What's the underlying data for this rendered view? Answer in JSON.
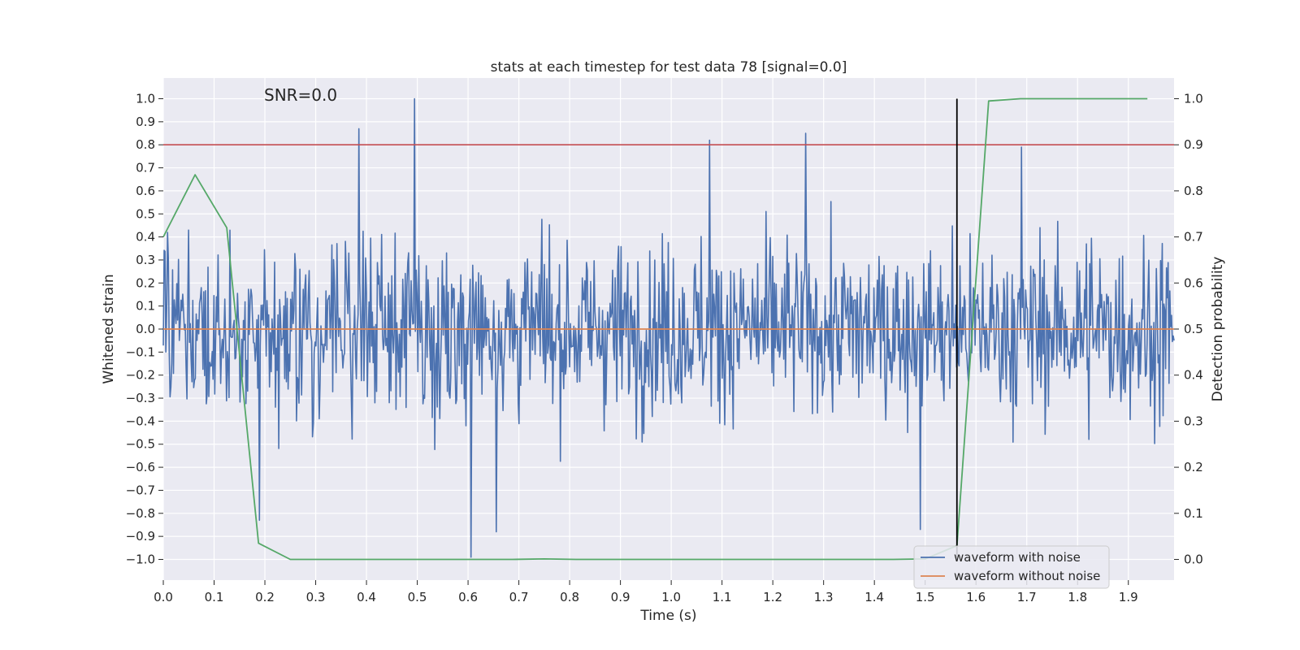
{
  "chart_data": {
    "type": "line",
    "title": "stats at each timestep for test data 78 [signal=0.0]",
    "xlabel": "Time (s)",
    "ylabel": "Whitened strain",
    "y2label": "Detection probability",
    "annotation": "SNR=0.0",
    "xlim": [
      0.0,
      1.99
    ],
    "ylim": [
      -1.09,
      1.09
    ],
    "y2lim": [
      -0.045,
      1.045
    ],
    "x_ticks": [
      "0.0",
      "0.1",
      "0.2",
      "0.3",
      "0.4",
      "0.5",
      "0.6",
      "0.7",
      "0.8",
      "0.9",
      "1.0",
      "1.1",
      "1.2",
      "1.3",
      "1.4",
      "1.5",
      "1.6",
      "1.7",
      "1.8",
      "1.9"
    ],
    "y_ticks": [
      "1.0",
      "0.9",
      "0.8",
      "0.7",
      "0.6",
      "0.5",
      "0.4",
      "0.3",
      "0.2",
      "0.1",
      "0.0",
      "−0.1",
      "−0.2",
      "−0.3",
      "−0.4",
      "−0.5",
      "−0.6",
      "−0.7",
      "−0.8",
      "−0.9",
      "−1.0"
    ],
    "y2_ticks": [
      "1.0",
      "0.9",
      "0.8",
      "0.7",
      "0.6",
      "0.5",
      "0.4",
      "0.3",
      "0.2",
      "0.1",
      "0.0"
    ],
    "grid": true,
    "legend_position": "lower-right",
    "series": [
      {
        "name": "waveform with noise",
        "color": "#4c72b0",
        "axis": "left",
        "x_start": 0.0,
        "x_end": 1.99,
        "n_samples": 1200,
        "peaks": [
          [
            0.495,
            1.0
          ],
          [
            0.385,
            0.87
          ],
          [
            1.265,
            0.85
          ],
          [
            1.075,
            0.82
          ],
          [
            1.69,
            0.79
          ],
          [
            0.605,
            -0.99
          ],
          [
            0.655,
            -0.88
          ],
          [
            1.49,
            -0.87
          ],
          [
            0.19,
            -0.83
          ]
        ]
      },
      {
        "name": "waveform without noise",
        "color": "#dd8452",
        "axis": "left",
        "x": [
          0.0,
          1.99
        ],
        "y": [
          0.0,
          0.0
        ]
      },
      {
        "name": "",
        "color": "#55a868",
        "axis": "right",
        "x": [
          0.0,
          0.0625,
          0.125,
          0.1875,
          0.25,
          0.3125,
          0.375,
          0.4375,
          0.5,
          0.5625,
          0.625,
          0.6875,
          0.75,
          0.8125,
          0.875,
          0.9375,
          1.0,
          1.0625,
          1.125,
          1.1875,
          1.25,
          1.3125,
          1.375,
          1.4375,
          1.5,
          1.5625,
          1.625,
          1.6875,
          1.75,
          1.8125,
          1.875,
          1.9375
        ],
        "y": [
          0.7,
          0.835,
          0.72,
          0.035,
          0.0,
          0.0,
          0.0,
          0.0,
          0.0,
          0.0,
          0.0,
          0.0,
          0.001,
          0.0,
          0.0,
          0.0,
          0.0,
          0.0,
          0.0,
          0.0,
          0.0,
          0.0,
          0.0,
          0.0,
          0.001,
          0.03,
          0.995,
          1.0,
          1.0,
          1.0,
          1.0,
          1.0
        ]
      }
    ],
    "hlines": [
      {
        "y": 0.8,
        "axis": "left",
        "color": "#c44e52"
      }
    ],
    "vlines": [
      {
        "x": 1.5625,
        "y_from": -1.0,
        "y_to": 1.0,
        "axis": "left",
        "color": "#000000"
      }
    ],
    "legend": [
      {
        "label": "waveform with noise",
        "color": "#4c72b0"
      },
      {
        "label": "waveform without noise",
        "color": "#dd8452"
      }
    ],
    "colors": {
      "plot_bg": "#eaeaf2",
      "grid": "#ffffff"
    }
  }
}
